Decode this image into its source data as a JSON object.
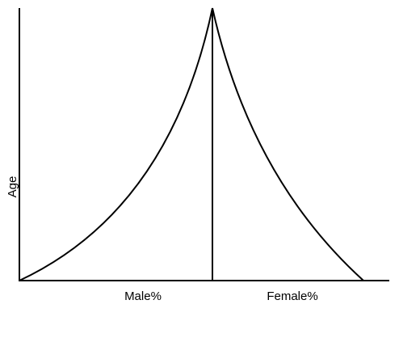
{
  "diagram": {
    "y_axis_label": "Age",
    "x_left_label": "Male%",
    "x_right_label": "Female%",
    "line_color": "#000000",
    "background_color": "#ffffff"
  }
}
